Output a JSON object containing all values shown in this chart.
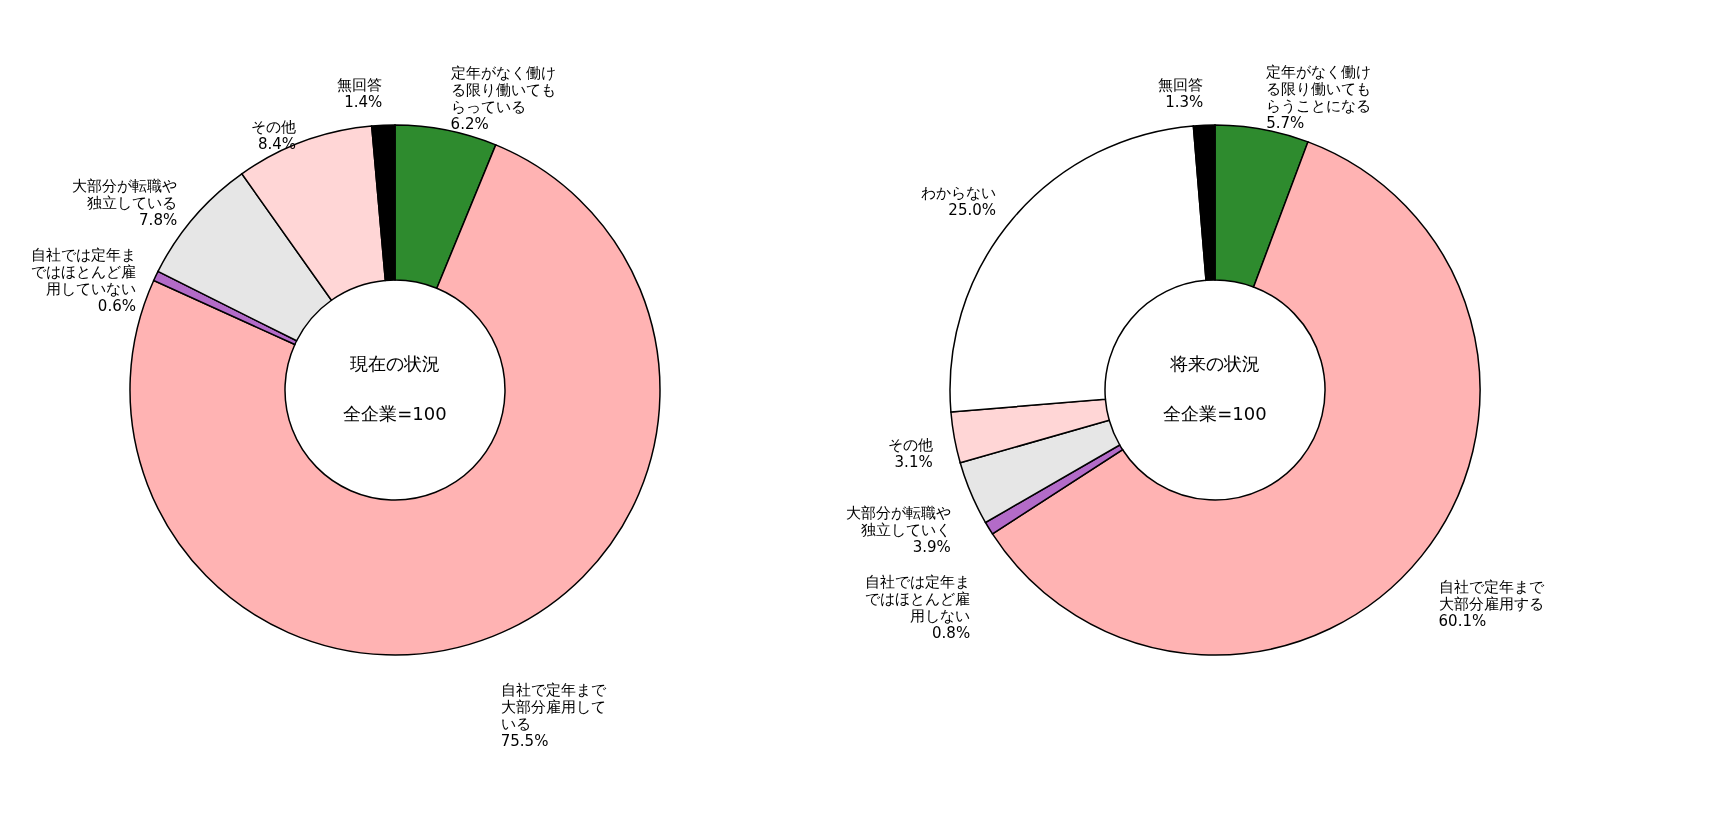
{
  "chart_data": [
    {
      "type": "donut",
      "categories": [
        "定年がなく働ける限り働いてもらっている",
        "自社で定年まで大部分雇用している",
        "自社では定年まではほとんど雇用していない",
        "大部分が転職や独立している",
        "その他",
        "無回答"
      ],
      "values": [
        6.2,
        75.5,
        0.6,
        7.8,
        8.4,
        1.4
      ],
      "value_labels": [
        "6.2%",
        "75.5%",
        "0.6%",
        "7.8%",
        "8.4%",
        "1.4%"
      ],
      "colors": [
        "#2e8b2e",
        "#ffb3b3",
        "#b36bc8",
        "#e6e6e6",
        "#ffd6d6",
        "#000000"
      ],
      "annotations": [
        "現在の状況",
        "全企業=100"
      ]
    },
    {
      "type": "donut",
      "categories": [
        "定年がなく働ける限り働いてもらうことになる",
        "自社で定年まで大部分雇用する",
        "自社では定年まではほとんど雇用しない",
        "大部分が転職や独立していく",
        "その他",
        "わからない",
        "無回答"
      ],
      "values": [
        5.7,
        60.1,
        0.8,
        3.9,
        3.1,
        25.0,
        1.3
      ],
      "value_labels": [
        "5.7%",
        "60.1%",
        "0.8%",
        "3.9%",
        "3.1%",
        "25.0%",
        "1.3%"
      ],
      "colors": [
        "#2e8b2e",
        "#ffb3b3",
        "#b36bc8",
        "#e6e6e6",
        "#ffd6d6",
        "#ffffff",
        "#000000"
      ],
      "annotations": [
        "将来の状況",
        "全企業=100"
      ]
    }
  ]
}
